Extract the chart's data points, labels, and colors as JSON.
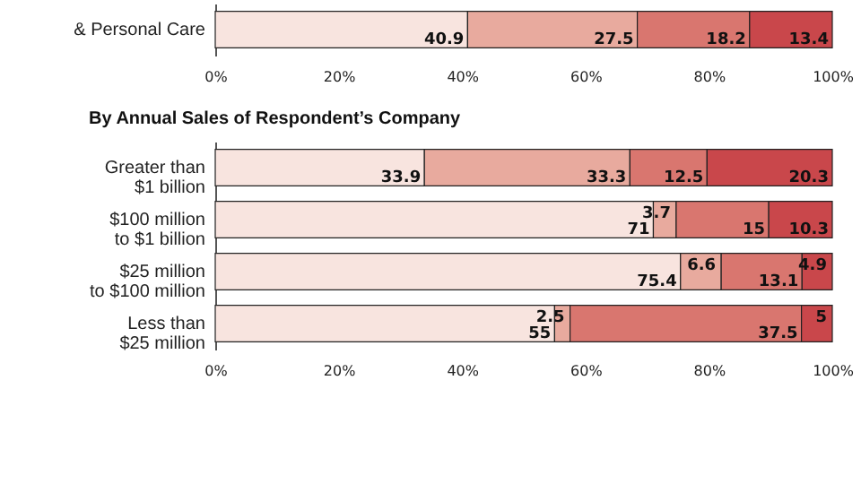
{
  "chart_data": [
    {
      "type": "bar",
      "orientation": "horizontal",
      "stacked": true,
      "data_labels": true,
      "categories": [
        "& Personal Care"
      ],
      "xlim": [
        0,
        100
      ],
      "xticks": [
        {
          "value": 0,
          "label": "0%"
        },
        {
          "value": 20,
          "label": "20%"
        },
        {
          "value": 40,
          "label": "40%"
        },
        {
          "value": 60,
          "label": "60%"
        },
        {
          "value": 80,
          "label": "80%"
        },
        {
          "value": 100,
          "label": "100%"
        }
      ],
      "grid": false,
      "legend": false,
      "series": [
        {
          "color": "#f8e4df",
          "values": [
            40.9
          ]
        },
        {
          "color": "#e8aa9e",
          "values": [
            27.5
          ]
        },
        {
          "color": "#d9766f",
          "values": [
            18.2
          ]
        },
        {
          "color": "#c9474b",
          "values": [
            13.4
          ]
        }
      ]
    },
    {
      "type": "bar",
      "orientation": "horizontal",
      "stacked": true,
      "data_labels": true,
      "title": "By Annual Sales of Respondent’s Company",
      "categories": [
        "Greater than $1 billion",
        "$100 million to $1 billion",
        "$25 million to $100 million",
        "Less than $25 million"
      ],
      "xlim": [
        0,
        100
      ],
      "xticks": [
        {
          "value": 0,
          "label": "0%"
        },
        {
          "value": 20,
          "label": "20%"
        },
        {
          "value": 40,
          "label": "40%"
        },
        {
          "value": 60,
          "label": "60%"
        },
        {
          "value": 80,
          "label": "80%"
        },
        {
          "value": 100,
          "label": "100%"
        }
      ],
      "grid": false,
      "legend": false,
      "series": [
        {
          "color": "#f8e4df",
          "values": [
            33.9,
            71,
            75.4,
            55
          ]
        },
        {
          "color": "#e8aa9e",
          "values": [
            33.3,
            3.7,
            6.6,
            2.5
          ]
        },
        {
          "color": "#d9766f",
          "values": [
            12.5,
            15,
            13.1,
            37.5
          ]
        },
        {
          "color": "#c9474b",
          "values": [
            20.3,
            10.3,
            4.9,
            5
          ]
        }
      ]
    }
  ]
}
